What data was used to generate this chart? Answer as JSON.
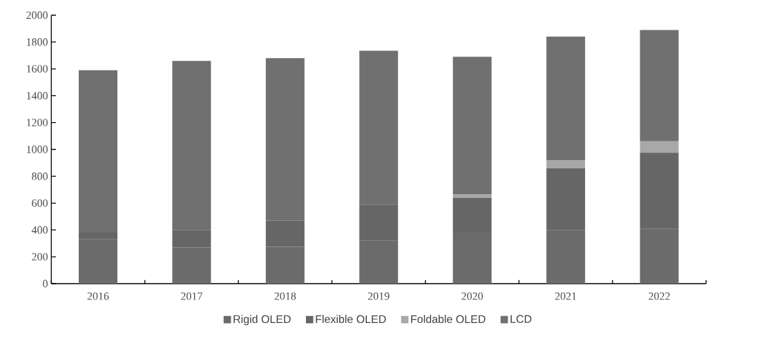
{
  "chart_data": {
    "type": "bar",
    "stacked": true,
    "categories": [
      "2016",
      "2017",
      "2018",
      "2019",
      "2020",
      "2021",
      "2022"
    ],
    "series": [
      {
        "name": "Rigid OLED",
        "color": "#6b6b6b",
        "values": [
          330,
          270,
          275,
          320,
          380,
          400,
          410
        ]
      },
      {
        "name": "Flexible OLED",
        "color": "#666666",
        "values": [
          50,
          130,
          195,
          270,
          260,
          460,
          565
        ]
      },
      {
        "name": "Foldable OLED",
        "color": "#a8a8a8",
        "values": [
          0,
          0,
          0,
          0,
          25,
          60,
          85
        ]
      },
      {
        "name": "LCD",
        "color": "#707070",
        "values": [
          1210,
          1260,
          1210,
          1145,
          1025,
          920,
          830
        ]
      }
    ],
    "ylim": [
      0,
      2000
    ],
    "yticks": [
      0,
      200,
      400,
      600,
      800,
      1000,
      1200,
      1400,
      1600,
      1800,
      2000
    ],
    "legend": "bottom"
  }
}
